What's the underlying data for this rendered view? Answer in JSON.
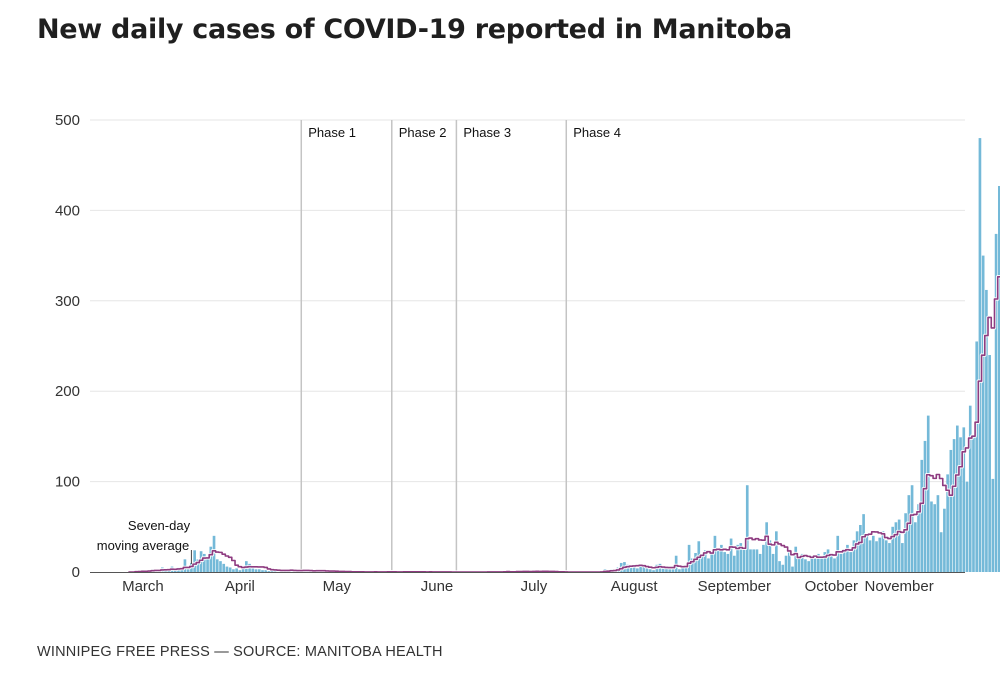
{
  "chart_data": {
    "type": "bar",
    "title": "New daily cases of COVID-19 reported in Manitoba",
    "source": "WINNIPEG FREE PRESS — SOURCE: MANITOBA HEALTH",
    "xlabel": "",
    "ylabel": "",
    "ylim": [
      0,
      500
    ],
    "yticks": [
      0,
      100,
      200,
      300,
      400,
      500
    ],
    "grid": true,
    "x_start": "2020-03-12",
    "x_end": "2020-11-13",
    "month_labels": [
      {
        "label": "March",
        "date": "2020-03-16"
      },
      {
        "label": "April",
        "date": "2020-04-15"
      },
      {
        "label": "May",
        "date": "2020-05-15"
      },
      {
        "label": "June",
        "date": "2020-06-15"
      },
      {
        "label": "July",
        "date": "2020-07-15"
      },
      {
        "label": "August",
        "date": "2020-08-15"
      },
      {
        "label": "September",
        "date": "2020-09-15"
      },
      {
        "label": "October",
        "date": "2020-10-15"
      },
      {
        "label": "November",
        "date": "2020-11-05"
      }
    ],
    "phases": [
      {
        "label": "Phase 1",
        "date": "2020-05-04"
      },
      {
        "label": "Phase 2",
        "date": "2020-06-01"
      },
      {
        "label": "Phase 3",
        "date": "2020-06-21"
      },
      {
        "label": "Phase 4",
        "date": "2020-07-25"
      }
    ],
    "annotation": {
      "text": [
        "Seven-day",
        "moving average"
      ],
      "date": "2020-03-31"
    },
    "series": [
      {
        "name": "Daily cases",
        "color": "#74b9d8"
      },
      {
        "name": "Seven-day moving average",
        "color": "#8e3b80"
      }
    ],
    "daily_cases": [
      0,
      0,
      1,
      1,
      2,
      1,
      2,
      3,
      2,
      1,
      5,
      3,
      2,
      6,
      2,
      5,
      3,
      14,
      3,
      10,
      24,
      14,
      23,
      20,
      15,
      28,
      40,
      14,
      12,
      9,
      6,
      5,
      3,
      4,
      2,
      6,
      12,
      9,
      4,
      3,
      3,
      2,
      2,
      1,
      3,
      2,
      1,
      1,
      2,
      2,
      3,
      1,
      1,
      1,
      2,
      2,
      1,
      1,
      2,
      1,
      1,
      0,
      1,
      1,
      0,
      0,
      1,
      0,
      0,
      0,
      1,
      0,
      0,
      0,
      0,
      0,
      1,
      0,
      0,
      0,
      1,
      0,
      0,
      0,
      0,
      1,
      0,
      1,
      0,
      0,
      0,
      0,
      0,
      1,
      0,
      0,
      0,
      0,
      0,
      0,
      0,
      0,
      0,
      0,
      0,
      0,
      0,
      0,
      0,
      0,
      0,
      1,
      0,
      0,
      0,
      0,
      1,
      1,
      0,
      0,
      1,
      0,
      1,
      1,
      0,
      1,
      1,
      0,
      1,
      1,
      0,
      0,
      0,
      0,
      0,
      0,
      0,
      0,
      0,
      0,
      0,
      0,
      0,
      0,
      0,
      0,
      1,
      3,
      2,
      3,
      2,
      5,
      10,
      11,
      8,
      6,
      5,
      4,
      8,
      7,
      4,
      3,
      2,
      8,
      9,
      5,
      4,
      3,
      3,
      18,
      3,
      5,
      6,
      30,
      15,
      21,
      34,
      18,
      24,
      15,
      20,
      40,
      25,
      30,
      22,
      20,
      37,
      18,
      30,
      32,
      25,
      96,
      25,
      25,
      25,
      20,
      30,
      55,
      35,
      20,
      45,
      12,
      8,
      18,
      25,
      6,
      28,
      16,
      20,
      14,
      12,
      18,
      15,
      20,
      16,
      22,
      25,
      18,
      15,
      40,
      20,
      25,
      30,
      22,
      35,
      45,
      52,
      64,
      40,
      35,
      40,
      34,
      38,
      45,
      35,
      32,
      50,
      55,
      58,
      32,
      65,
      85,
      96,
      55,
      75,
      124,
      145,
      173,
      78,
      75,
      85,
      44,
      70,
      108,
      135,
      147,
      162,
      149,
      160,
      100,
      184,
      150,
      255,
      480,
      350,
      312,
      240,
      103,
      374,
      427
    ]
  }
}
